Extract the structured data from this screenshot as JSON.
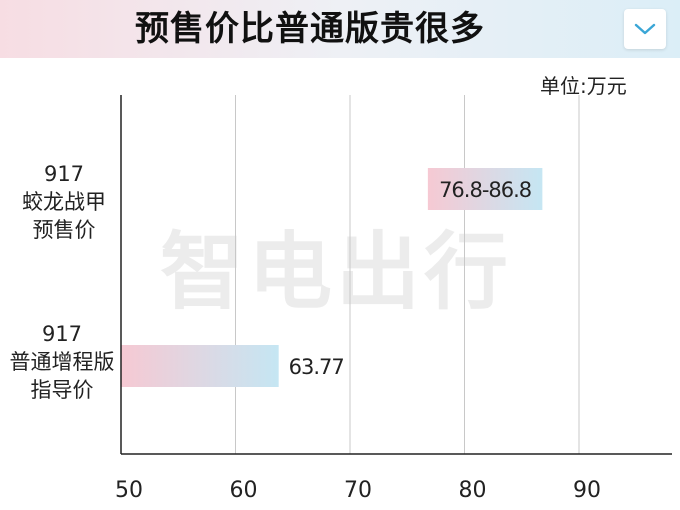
{
  "header": {
    "title": "预售价比普通版贵很多",
    "collapse_icon": "chevron-down-icon",
    "accent_color": "#3aa6d6"
  },
  "unit_label": "单位:万元",
  "watermark": "智电出行",
  "chart_data": {
    "type": "bar",
    "orientation": "horizontal",
    "title": "预售价比普通版贵很多",
    "unit": "单位:万元",
    "categories": [
      [
        "917",
        "蛟龙战甲",
        "预售价"
      ],
      [
        "917",
        "普通增程版",
        "指导价"
      ]
    ],
    "bars": [
      {
        "start": 76.8,
        "end": 86.8,
        "label": "76.8-86.8"
      },
      {
        "start": 50,
        "end": 63.77,
        "label": "63.77"
      }
    ],
    "xticks": [
      "50",
      "60",
      "70",
      "80",
      "90"
    ],
    "xlim": [
      50,
      97
    ],
    "grid": true,
    "bar_colors": [
      "#f6c9d3",
      "#c5e6f3"
    ]
  }
}
